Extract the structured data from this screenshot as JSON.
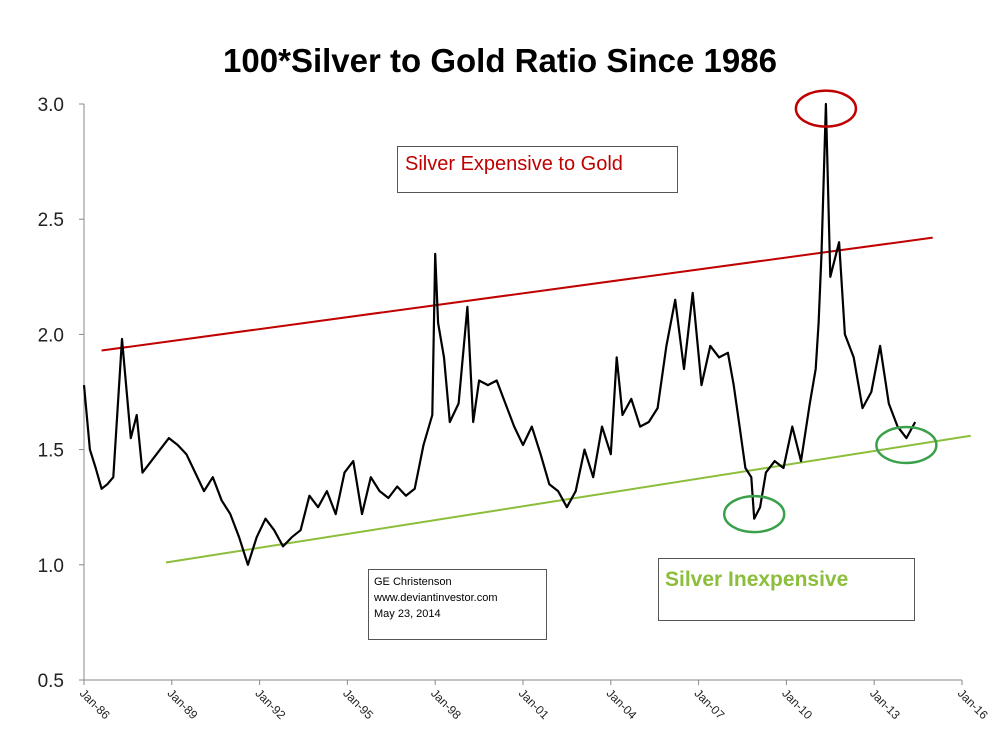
{
  "chart_data": {
    "type": "line",
    "title": "100*Silver to Gold Ratio Since 1986",
    "ylim": [
      0.5,
      3.0
    ],
    "yticks": [
      "0.5",
      "1.0",
      "1.5",
      "2.0",
      "2.5",
      "3.0"
    ],
    "xlim": [
      1986.0,
      2016.0
    ],
    "xtick_labels": [
      "Jan-86",
      "Jan-89",
      "Jan-92",
      "Jan-95",
      "Jan-98",
      "Jan-01",
      "Jan-04",
      "Jan-07",
      "Jan-10",
      "Jan-13",
      "Jan-16"
    ],
    "series": [
      {
        "color": "#000000",
        "x": [
          1986.0,
          1986.2,
          1986.4,
          1986.6,
          1986.8,
          1987.0,
          1987.3,
          1987.6,
          1987.8,
          1988.0,
          1988.3,
          1988.6,
          1988.9,
          1989.2,
          1989.5,
          1989.8,
          1990.1,
          1990.4,
          1990.7,
          1991.0,
          1991.3,
          1991.6,
          1991.9,
          1992.2,
          1992.5,
          1992.8,
          1993.1,
          1993.4,
          1993.7,
          1994.0,
          1994.3,
          1994.6,
          1994.9,
          1995.2,
          1995.5,
          1995.8,
          1996.1,
          1996.4,
          1996.7,
          1997.0,
          1997.3,
          1997.6,
          1997.9,
          1998.0,
          1998.1,
          1998.3,
          1998.5,
          1998.8,
          1999.1,
          1999.3,
          1999.5,
          1999.8,
          2000.1,
          2000.4,
          2000.7,
          2001.0,
          2001.3,
          2001.6,
          2001.9,
          2002.2,
          2002.5,
          2002.8,
          2003.1,
          2003.4,
          2003.7,
          2004.0,
          2004.2,
          2004.4,
          2004.7,
          2005.0,
          2005.3,
          2005.6,
          2005.9,
          2006.2,
          2006.5,
          2006.8,
          2007.1,
          2007.4,
          2007.7,
          2008.0,
          2008.2,
          2008.4,
          2008.6,
          2008.8,
          2008.9,
          2009.1,
          2009.3,
          2009.6,
          2009.9,
          2010.2,
          2010.5,
          2010.8,
          2011.0,
          2011.1,
          2011.2,
          2011.35,
          2011.5,
          2011.8,
          2012.0,
          2012.3,
          2012.6,
          2012.9,
          2013.2,
          2013.5,
          2013.8,
          2014.1,
          2014.4
        ],
        "values": [
          1.78,
          1.5,
          1.42,
          1.33,
          1.35,
          1.38,
          1.98,
          1.55,
          1.65,
          1.4,
          1.45,
          1.5,
          1.55,
          1.52,
          1.48,
          1.4,
          1.32,
          1.38,
          1.28,
          1.22,
          1.12,
          1.0,
          1.12,
          1.2,
          1.15,
          1.08,
          1.12,
          1.15,
          1.3,
          1.25,
          1.32,
          1.22,
          1.4,
          1.45,
          1.22,
          1.38,
          1.32,
          1.29,
          1.34,
          1.3,
          1.33,
          1.52,
          1.65,
          2.35,
          2.05,
          1.9,
          1.62,
          1.7,
          2.12,
          1.62,
          1.8,
          1.78,
          1.8,
          1.7,
          1.6,
          1.52,
          1.6,
          1.48,
          1.35,
          1.32,
          1.25,
          1.32,
          1.5,
          1.38,
          1.6,
          1.48,
          1.9,
          1.65,
          1.72,
          1.6,
          1.62,
          1.68,
          1.95,
          2.15,
          1.85,
          2.18,
          1.78,
          1.95,
          1.9,
          1.92,
          1.78,
          1.6,
          1.42,
          1.38,
          1.2,
          1.25,
          1.4,
          1.45,
          1.42,
          1.6,
          1.45,
          1.7,
          1.85,
          2.05,
          2.35,
          3.0,
          2.25,
          2.4,
          2.0,
          1.9,
          1.68,
          1.75,
          1.95,
          1.7,
          1.6,
          1.55,
          1.62
        ]
      }
    ],
    "trendlines": [
      {
        "color": "#c00000",
        "x": [
          1986.6,
          2015.0
        ],
        "values": [
          1.93,
          2.42
        ]
      },
      {
        "color": "#8bbe3b",
        "x": [
          1988.8,
          2016.3
        ],
        "values": [
          1.01,
          1.56
        ]
      }
    ],
    "annotations": {
      "expensive": "Silver Expensive to Gold",
      "inexpensive": "Silver Inexpensive",
      "credit": [
        "GE Christenson",
        "www.deviantinvestor.com",
        "May 23, 2014"
      ]
    },
    "ellipse_marks": [
      {
        "color": "#c00000",
        "x": 2011.35,
        "y": 2.98
      },
      {
        "color": "#3aa04a",
        "x": 2008.9,
        "y": 1.22
      },
      {
        "color": "#3aa04a",
        "x": 2014.1,
        "y": 1.52
      }
    ]
  }
}
